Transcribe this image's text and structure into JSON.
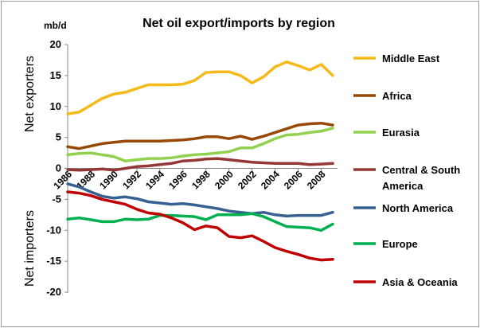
{
  "chart_data": {
    "type": "line",
    "title": "Net oil export/imports by region",
    "unit_label": "mb/d",
    "ylabel_top": "Net  exporters",
    "ylabel_bottom": "Net  importers",
    "ylim": [
      -20,
      20
    ],
    "yticks": [
      20,
      15,
      10,
      5,
      0,
      -5,
      -10,
      -15,
      -20
    ],
    "x": [
      1986,
      1987,
      1988,
      1989,
      1990,
      1991,
      1992,
      1993,
      1994,
      1995,
      1996,
      1997,
      1998,
      1999,
      2000,
      2001,
      2002,
      2003,
      2004,
      2005,
      2006,
      2007,
      2008,
      2009
    ],
    "xticks": [
      1986,
      1988,
      1990,
      1992,
      1994,
      1996,
      1998,
      2000,
      2002,
      2004,
      2006,
      2008
    ],
    "legend_position": "right",
    "grid": false,
    "series": [
      {
        "name": "Middle East",
        "color": "#F5BA1A",
        "values": [
          8.8,
          9.1,
          10.2,
          11.3,
          12.0,
          12.3,
          12.9,
          13.5,
          13.5,
          13.5,
          13.6,
          14.2,
          15.5,
          15.6,
          15.6,
          15.0,
          13.8,
          14.8,
          16.4,
          17.2,
          16.6,
          15.9,
          16.8,
          15.0
        ]
      },
      {
        "name": "Africa",
        "color": "#984807",
        "values": [
          3.5,
          3.2,
          3.6,
          4.0,
          4.2,
          4.4,
          4.4,
          4.4,
          4.4,
          4.5,
          4.6,
          4.8,
          5.1,
          5.1,
          4.8,
          5.2,
          4.7,
          5.2,
          5.8,
          6.4,
          7.0,
          7.2,
          7.3,
          7.0
        ]
      },
      {
        "name": "Eurasia",
        "color": "#92D050",
        "values": [
          2.2,
          2.4,
          2.5,
          2.2,
          1.9,
          1.2,
          1.4,
          1.6,
          1.6,
          1.7,
          2.0,
          2.2,
          2.3,
          2.5,
          2.7,
          3.3,
          3.3,
          4.0,
          4.8,
          5.4,
          5.5,
          5.8,
          6.0,
          6.5
        ]
      },
      {
        "name": "Central & South America",
        "color": "#953735",
        "values": [
          -0.2,
          -0.3,
          -0.2,
          -0.1,
          -0.3,
          0.0,
          0.3,
          0.4,
          0.6,
          0.8,
          1.2,
          1.3,
          1.5,
          1.6,
          1.4,
          1.2,
          1.0,
          0.9,
          0.8,
          0.8,
          0.8,
          0.6,
          0.7,
          0.8
        ]
      },
      {
        "name": "North America",
        "color": "#376092",
        "values": [
          -2.5,
          -3.0,
          -3.8,
          -4.5,
          -4.8,
          -4.6,
          -4.9,
          -5.4,
          -5.6,
          -5.8,
          -5.7,
          -5.9,
          -6.2,
          -6.5,
          -6.9,
          -7.1,
          -7.3,
          -7.1,
          -7.5,
          -7.7,
          -7.6,
          -7.6,
          -7.6,
          -7.1
        ]
      },
      {
        "name": "Europe",
        "color": "#00B050",
        "values": [
          -8.2,
          -8.0,
          -8.3,
          -8.6,
          -8.6,
          -8.2,
          -8.3,
          -8.2,
          -7.6,
          -7.6,
          -7.7,
          -7.8,
          -8.3,
          -7.5,
          -7.5,
          -7.5,
          -7.3,
          -7.8,
          -8.6,
          -9.4,
          -9.5,
          -9.6,
          -10.0,
          -9.0
        ]
      },
      {
        "name": "Asia & Oceania",
        "color": "#C00000",
        "values": [
          -3.8,
          -4.0,
          -4.4,
          -5.0,
          -5.4,
          -5.8,
          -6.6,
          -7.2,
          -7.4,
          -8.0,
          -8.8,
          -9.9,
          -9.3,
          -9.6,
          -11.0,
          -11.2,
          -10.9,
          -11.8,
          -12.8,
          -13.4,
          -13.9,
          -14.5,
          -14.8,
          -14.7
        ]
      }
    ]
  }
}
